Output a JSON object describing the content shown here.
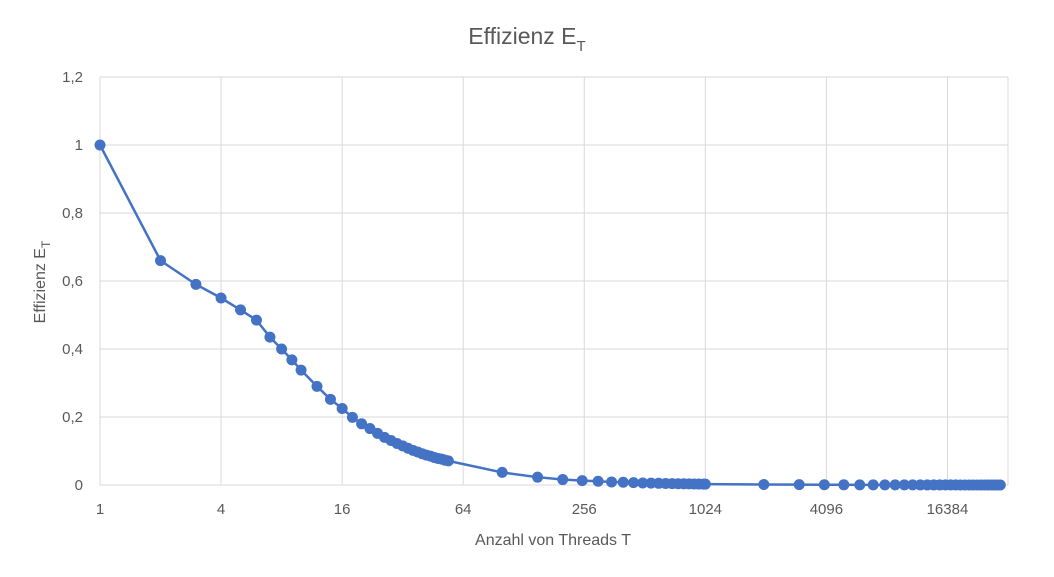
{
  "chart_data": {
    "type": "scatter",
    "title": "Effizienz E",
    "title_sub": "T",
    "xlabel": "Anzahl von Threads T",
    "ylabel": "Effizienz E",
    "ylabel_sub": "T",
    "x_scale": "log2",
    "xlim": [
      1,
      32768
    ],
    "x_ticks": [
      1,
      4,
      16,
      64,
      256,
      1024,
      4096,
      16384
    ],
    "x_tick_labels": [
      "1",
      "4",
      "16",
      "64",
      "256",
      "1024",
      "4096",
      "16384"
    ],
    "ylim": [
      0,
      1.2
    ],
    "y_ticks": [
      0,
      0.2,
      0.4,
      0.6,
      0.8,
      1.0,
      1.2
    ],
    "y_tick_labels": [
      "0",
      "0,2",
      "0,4",
      "0,6",
      "0,8",
      "1",
      "1,2"
    ],
    "grid": true,
    "legend": "none",
    "series_color": "#4472c4",
    "series": [
      {
        "x": [
          1,
          2,
          3,
          4,
          5,
          6,
          7,
          8,
          9,
          10,
          12,
          14,
          16,
          18,
          20,
          22,
          24,
          26,
          28,
          30,
          32,
          34,
          36,
          38,
          40,
          42,
          44,
          46,
          48,
          50,
          52,
          54,
          100,
          150,
          200,
          250,
          300,
          350,
          400,
          450,
          500,
          550,
          600,
          650,
          700,
          750,
          800,
          850,
          900,
          950,
          1000,
          1024,
          2000,
          3000,
          4000,
          5000,
          6000,
          7000,
          8000,
          9000,
          10000,
          11000,
          12000,
          13000,
          14000,
          15000,
          16000,
          17000,
          18000,
          19000,
          20000,
          21000,
          22000,
          23000,
          24000,
          25000,
          26000,
          27000,
          28000,
          29000,
          30000
        ],
        "y": [
          1.0,
          0.66,
          0.59,
          0.55,
          0.515,
          0.485,
          0.435,
          0.4,
          0.368,
          0.338,
          0.29,
          0.252,
          0.225,
          0.199,
          0.18,
          0.166,
          0.152,
          0.14,
          0.131,
          0.122,
          0.115,
          0.108,
          0.102,
          0.097,
          0.092,
          0.088,
          0.085,
          0.081,
          0.078,
          0.076,
          0.073,
          0.071,
          0.037,
          0.023,
          0.016,
          0.013,
          0.011,
          0.009,
          0.008,
          0.007,
          0.006,
          0.0055,
          0.005,
          0.0045,
          0.004,
          0.0038,
          0.0035,
          0.0033,
          0.003,
          0.0028,
          0.0027,
          0.0026,
          0.0014,
          0.001,
          0.0008,
          0.0006,
          0.0005,
          0.0004,
          0.0004,
          0.0003,
          0.0003,
          0.0003,
          0.0002,
          0.0002,
          0.0002,
          0.0002,
          0.0002,
          0.0002,
          0.0002,
          0.0001,
          0.0001,
          0.0001,
          0.0001,
          0.0001,
          0.0001,
          0.0001,
          0.0001,
          0.0001,
          0.0001,
          0.0001,
          0.0001
        ]
      }
    ]
  }
}
